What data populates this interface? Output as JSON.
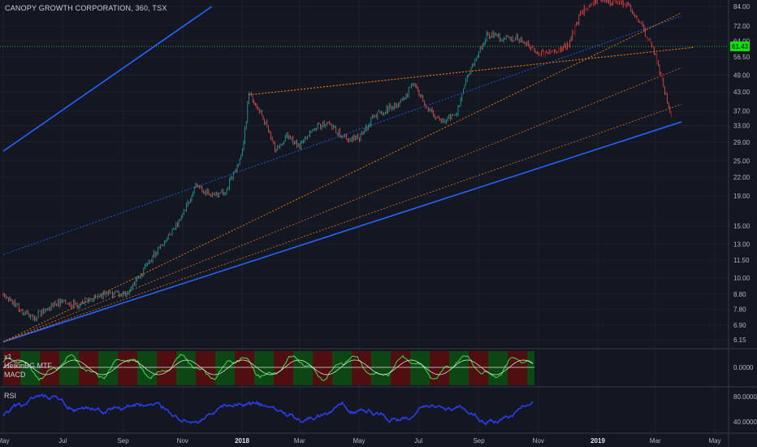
{
  "header": {
    "title": "CANOPY GROWTH CORPORATION, 360, TSX"
  },
  "indicators": {
    "macd_labels": [
      "x1",
      "HeikinBG MTF",
      "MACD"
    ],
    "rsi_label": "RSI"
  },
  "colors": {
    "background": "#131722",
    "candle_up": "#26a69a",
    "candle_down": "#ef5350",
    "channel_line": "#2962ff",
    "fib_line": "#f57c00",
    "price_line": "#4caf50",
    "rsi_line": "#2f3bf0",
    "last_price_bg": "#00e600"
  },
  "chart_data": {
    "type": "candlestick",
    "title": "CANOPY GROWTH CORPORATION, 360, TSX",
    "y_scale": "log",
    "price_ticks": [
      84.0,
      72.0,
      64.0,
      56.5,
      49.0,
      43.0,
      37.0,
      33.0,
      29.0,
      25.0,
      22.0,
      19.0,
      15.0,
      13.0,
      11.5,
      10.0,
      8.8,
      7.8,
      6.9,
      6.15
    ],
    "price_tick_labels": [
      "84.00",
      "72.00",
      "64.00",
      "56.50",
      "49.00",
      "43.00",
      "37.00",
      "33.00",
      "29.00",
      "25.00",
      "22.00",
      "19.00",
      "15.00",
      "13.00",
      "11.50",
      "10.00",
      "8.80",
      "7.80",
      "6.90",
      "6.15"
    ],
    "last_price": 61.43,
    "last_price_label": "61.43",
    "x_tick_labels": [
      "May",
      "Jul",
      "Sep",
      "Nov",
      "2018",
      "Mar",
      "May",
      "Jul",
      "Sep",
      "Nov",
      "2019",
      "Mar",
      "May"
    ],
    "price_path": [
      [
        "2017-05-01",
        8.8
      ],
      [
        "2017-05-15",
        8.0
      ],
      [
        "2017-06-01",
        7.3
      ],
      [
        "2017-06-15",
        7.9
      ],
      [
        "2017-07-01",
        8.3
      ],
      [
        "2017-07-15",
        8.1
      ],
      [
        "2017-08-01",
        8.5
      ],
      [
        "2017-08-15",
        8.9
      ],
      [
        "2017-09-01",
        8.7
      ],
      [
        "2017-09-15",
        9.8
      ],
      [
        "2017-10-01",
        11.8
      ],
      [
        "2017-10-15",
        13.5
      ],
      [
        "2017-11-01",
        16.5
      ],
      [
        "2017-11-15",
        20.5
      ],
      [
        "2017-12-01",
        19.0
      ],
      [
        "2017-12-15",
        19.8
      ],
      [
        "2018-01-01",
        26.0
      ],
      [
        "2018-01-08",
        42.0
      ],
      [
        "2018-01-22",
        36.0
      ],
      [
        "2018-02-05",
        27.0
      ],
      [
        "2018-02-15",
        30.5
      ],
      [
        "2018-03-01",
        28.0
      ],
      [
        "2018-03-15",
        32.5
      ],
      [
        "2018-04-01",
        33.5
      ],
      [
        "2018-04-15",
        30.0
      ],
      [
        "2018-05-01",
        30.0
      ],
      [
        "2018-05-15",
        35.0
      ],
      [
        "2018-06-01",
        38.0
      ],
      [
        "2018-06-15",
        40.0
      ],
      [
        "2018-06-25",
        46.0
      ],
      [
        "2018-07-10",
        38.0
      ],
      [
        "2018-07-25",
        34.0
      ],
      [
        "2018-08-10",
        37.0
      ],
      [
        "2018-08-20",
        48.0
      ],
      [
        "2018-08-31",
        58.0
      ],
      [
        "2018-09-10",
        68.0
      ],
      [
        "2018-09-25",
        65.0
      ],
      [
        "2018-10-10",
        66.0
      ],
      [
        "2018-10-20",
        63.0
      ],
      [
        "2018-11-01",
        58.0
      ],
      [
        "2018-11-15",
        59.0
      ],
      [
        "2018-12-01",
        62.0
      ],
      [
        "2018-12-15",
        80.0
      ],
      [
        "2019-01-01",
        90.0
      ],
      [
        "2019-01-15",
        86.0
      ],
      [
        "2019-02-01",
        85.0
      ],
      [
        "2019-02-15",
        72.0
      ],
      [
        "2019-03-01",
        58.0
      ],
      [
        "2019-03-10",
        44.0
      ],
      [
        "2019-03-18",
        34.0
      ]
    ],
    "lines": {
      "upper_channel": [
        [
          "2017-05-01",
          27.0
        ],
        [
          "2017-12-01",
          84.0
        ]
      ],
      "lower_channel": [
        [
          "2017-05-01",
          6.05
        ],
        [
          "2019-03-28",
          34.0
        ]
      ],
      "mid_channel": [
        [
          "2017-05-01",
          12.0
        ],
        [
          "2019-03-28",
          78.0
        ]
      ],
      "fib_top": [
        [
          "2018-01-08",
          42.0
        ],
        [
          "2019-04-10",
          61.0
        ]
      ],
      "fib_fan": [
        [
          [
            "2017-05-01",
            6.05
          ],
          [
            "2019-03-28",
            80.0
          ]
        ],
        [
          [
            "2017-05-01",
            6.05
          ],
          [
            "2019-03-28",
            52.0
          ]
        ],
        [
          [
            "2017-05-01",
            6.05
          ],
          [
            "2019-03-28",
            39.0
          ]
        ]
      ]
    },
    "macd": {
      "ticks": [
        0.0
      ],
      "tick_labels": [
        "0.0000"
      ]
    },
    "rsi": {
      "ticks": [
        80.0,
        40.0
      ],
      "tick_labels": [
        "80.0000",
        "40.0000"
      ]
    }
  }
}
